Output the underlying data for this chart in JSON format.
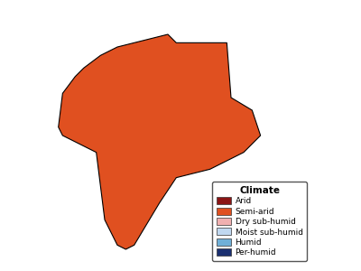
{
  "legend_title": "Climate",
  "categories": [
    "Arid",
    "Semi-arid",
    "Dry sub-humid",
    "Moist sub-humid",
    "Humid",
    "Per-humid"
  ],
  "colors": [
    "#8B1515",
    "#E05020",
    "#F0B0B0",
    "#C0D8F0",
    "#70B0D8",
    "#1A2F70"
  ],
  "background_color": "#FFFFFF",
  "legend_fontsize": 6.5,
  "legend_title_fontsize": 7.5,
  "figsize": [
    4.0,
    3.0
  ],
  "dpi": 100,
  "xlim": [
    67.0,
    98.0
  ],
  "ylim": [
    6.0,
    38.0
  ]
}
